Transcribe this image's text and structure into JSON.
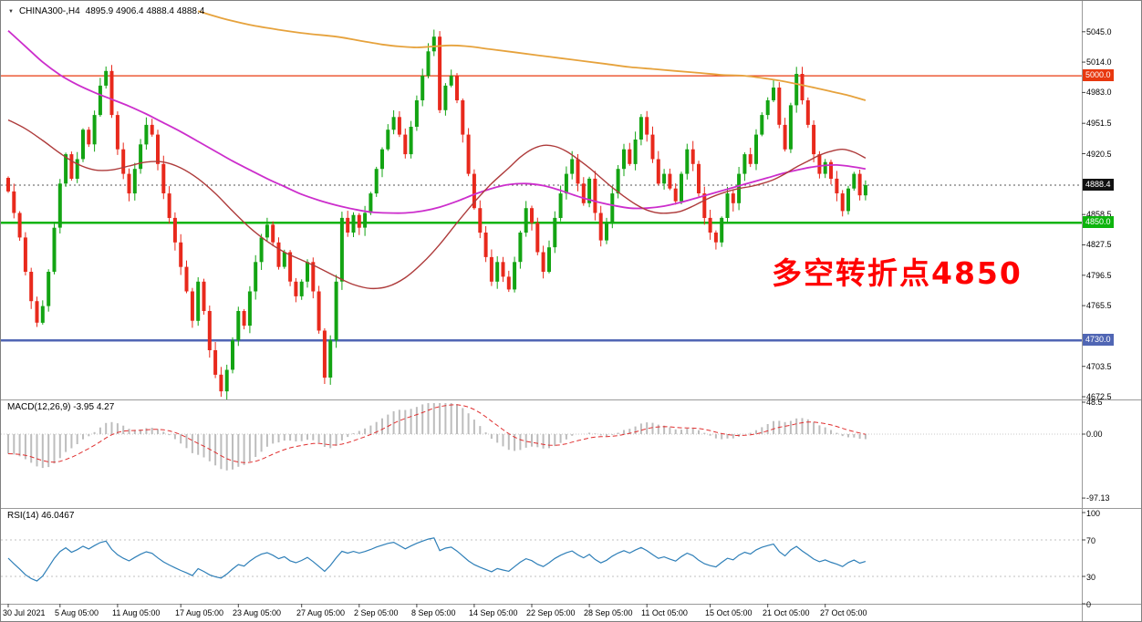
{
  "header": {
    "symbol": "CHINA300-,H4",
    "ohlc": "4895.9 4906.4 4888.4 4888.4"
  },
  "icons": {
    "dropdown": "▼"
  },
  "annotation": {
    "text": "多空转折点4850",
    "color": "#ff0000"
  },
  "colors": {
    "up": "#13a413",
    "down": "#e8291c",
    "background": "#ffffff",
    "panel_border": "#9a9a9a",
    "axis_text": "#000000",
    "current_price_badge": "#111111"
  },
  "chart_data": {
    "type": "candlestick",
    "symbol": "CHINA300-",
    "timeframe": "H4",
    "ohlc": {
      "open": 4895.9,
      "high": 4906.4,
      "low": 4888.4,
      "close": 4888.4
    },
    "y_range": {
      "top_price": 5069,
      "bottom_price": 4672.5
    },
    "price_axis_labels": [
      {
        "text": "5045.0",
        "price": 5045.0
      },
      {
        "text": "5014.0",
        "price": 5014.0
      },
      {
        "text": "4983.0",
        "price": 4983.0
      },
      {
        "text": "4951.5",
        "price": 4951.5
      },
      {
        "text": "4920.5",
        "price": 4920.5
      },
      {
        "text": "4858.5",
        "price": 4858.5
      },
      {
        "text": "4827.5",
        "price": 4827.5
      },
      {
        "text": "4796.5",
        "price": 4796.5
      },
      {
        "text": "4765.5",
        "price": 4765.5
      },
      {
        "text": "4703.5",
        "price": 4703.5
      },
      {
        "text": "4672.5",
        "price": 4672.5
      }
    ],
    "first_open": 4895.9,
    "closes": [
      4882,
      4860,
      4835,
      4800,
      4770,
      4748,
      4765,
      4800,
      4845,
      4890,
      4920,
      4895,
      4915,
      4945,
      4930,
      4960,
      4990,
      5005,
      4960,
      4925,
      4900,
      4880,
      4905,
      4930,
      4950,
      4940,
      4910,
      4880,
      4855,
      4830,
      4805,
      4780,
      4750,
      4790,
      4760,
      4720,
      4695,
      4678,
      4700,
      4730,
      4760,
      4745,
      4780,
      4810,
      4835,
      4848,
      4830,
      4805,
      4820,
      4790,
      4775,
      4790,
      4810,
      4780,
      4740,
      4692,
      4730,
      4790,
      4855,
      4840,
      4858,
      4845,
      4860,
      4880,
      4905,
      4925,
      4945,
      4958,
      4940,
      4920,
      4948,
      4975,
      5000,
      5025,
      5040,
      4965,
      4990,
      5000,
      4975,
      4940,
      4900,
      4865,
      4840,
      4815,
      4790,
      4810,
      4795,
      4782,
      4810,
      4840,
      4865,
      4850,
      4820,
      4800,
      4825,
      4855,
      4880,
      4900,
      4915,
      4890,
      4870,
      4895,
      4860,
      4832,
      4850,
      4880,
      4905,
      4925,
      4910,
      4935,
      4958,
      4940,
      4915,
      4890,
      4900,
      4885,
      4872,
      4900,
      4925,
      4910,
      4880,
      4855,
      4840,
      4830,
      4855,
      4880,
      4870,
      4900,
      4920,
      4910,
      4940,
      4960,
      4975,
      4988,
      4950,
      4925,
      4970,
      5002,
      4975,
      4950,
      4920,
      4900,
      4912,
      4895,
      4880,
      4862,
      4885,
      4900,
      4878,
      4888.4
    ],
    "moving_averages": [
      {
        "name": "ma-slow-orange",
        "color": "#e6a23c",
        "width": 1.8,
        "points": [
          [
            33,
            5066
          ],
          [
            37,
            5059
          ],
          [
            42,
            5052
          ],
          [
            47,
            5047
          ],
          [
            52,
            5043
          ],
          [
            57,
            5040
          ],
          [
            61,
            5036
          ],
          [
            65,
            5032
          ],
          [
            68,
            5030
          ],
          [
            71,
            5029
          ],
          [
            74,
            5030
          ],
          [
            77,
            5031
          ],
          [
            80,
            5030
          ],
          [
            84,
            5027
          ],
          [
            88,
            5024
          ],
          [
            92,
            5021
          ],
          [
            96,
            5018
          ],
          [
            100,
            5015
          ],
          [
            104,
            5012
          ],
          [
            108,
            5009
          ],
          [
            112,
            5007
          ],
          [
            116,
            5005
          ],
          [
            120,
            5003
          ],
          [
            124,
            5001
          ],
          [
            128,
            5000
          ],
          [
            132,
            4997
          ],
          [
            136,
            4993
          ],
          [
            140,
            4988
          ],
          [
            143,
            4984
          ],
          [
            146,
            4980
          ],
          [
            149,
            4975
          ]
        ]
      },
      {
        "name": "ma-medium-magenta",
        "color": "#cc2ecc",
        "width": 1.8,
        "points": [
          [
            0,
            5046
          ],
          [
            3,
            5030
          ],
          [
            6,
            5014
          ],
          [
            9,
            5001
          ],
          [
            12,
            4991
          ],
          [
            15,
            4983
          ],
          [
            18,
            4976
          ],
          [
            21,
            4969
          ],
          [
            24,
            4961
          ],
          [
            27,
            4952
          ],
          [
            30,
            4943
          ],
          [
            33,
            4933
          ],
          [
            36,
            4923
          ],
          [
            39,
            4913
          ],
          [
            42,
            4904
          ],
          [
            45,
            4895
          ],
          [
            48,
            4887
          ],
          [
            51,
            4879
          ],
          [
            54,
            4873
          ],
          [
            57,
            4868
          ],
          [
            60,
            4864
          ],
          [
            63,
            4861
          ],
          [
            66,
            4860
          ],
          [
            69,
            4860
          ],
          [
            72,
            4862
          ],
          [
            75,
            4866
          ],
          [
            78,
            4872
          ],
          [
            81,
            4879
          ],
          [
            84,
            4885
          ],
          [
            87,
            4889
          ],
          [
            90,
            4890
          ],
          [
            93,
            4888
          ],
          [
            96,
            4883
          ],
          [
            99,
            4877
          ],
          [
            102,
            4872
          ],
          [
            105,
            4868
          ],
          [
            108,
            4865
          ],
          [
            111,
            4865
          ],
          [
            114,
            4867
          ],
          [
            117,
            4871
          ],
          [
            120,
            4876
          ],
          [
            123,
            4881
          ],
          [
            126,
            4886
          ],
          [
            129,
            4891
          ],
          [
            132,
            4896
          ],
          [
            135,
            4901
          ],
          [
            138,
            4905
          ],
          [
            141,
            4908
          ],
          [
            144,
            4909
          ],
          [
            147,
            4907
          ],
          [
            149,
            4905
          ]
        ]
      },
      {
        "name": "ma-fast-darkred",
        "color": "#ae3b3b",
        "width": 1.4,
        "points": [
          [
            0,
            4955
          ],
          [
            3,
            4946
          ],
          [
            6,
            4934
          ],
          [
            9,
            4921
          ],
          [
            12,
            4910
          ],
          [
            15,
            4904
          ],
          [
            18,
            4904
          ],
          [
            21,
            4908
          ],
          [
            24,
            4912
          ],
          [
            27,
            4912
          ],
          [
            30,
            4906
          ],
          [
            33,
            4895
          ],
          [
            36,
            4880
          ],
          [
            39,
            4862
          ],
          [
            42,
            4845
          ],
          [
            45,
            4831
          ],
          [
            48,
            4820
          ],
          [
            51,
            4812
          ],
          [
            54,
            4804
          ],
          [
            57,
            4795
          ],
          [
            60,
            4787
          ],
          [
            63,
            4783
          ],
          [
            66,
            4785
          ],
          [
            69,
            4794
          ],
          [
            72,
            4809
          ],
          [
            75,
            4828
          ],
          [
            78,
            4850
          ],
          [
            81,
            4871
          ],
          [
            84,
            4890
          ],
          [
            87,
            4906
          ],
          [
            89,
            4917
          ],
          [
            91,
            4925
          ],
          [
            93,
            4929
          ],
          [
            95,
            4928
          ],
          [
            97,
            4923
          ],
          [
            99,
            4915
          ],
          [
            101,
            4906
          ],
          [
            103,
            4896
          ],
          [
            105,
            4886
          ],
          [
            107,
            4877
          ],
          [
            109,
            4869
          ],
          [
            111,
            4863
          ],
          [
            113,
            4860
          ],
          [
            115,
            4860
          ],
          [
            117,
            4862
          ],
          [
            119,
            4867
          ],
          [
            121,
            4873
          ],
          [
            123,
            4878
          ],
          [
            125,
            4882
          ],
          [
            127,
            4885
          ],
          [
            129,
            4887
          ],
          [
            131,
            4890
          ],
          [
            133,
            4894
          ],
          [
            135,
            4900
          ],
          [
            137,
            4907
          ],
          [
            139,
            4913
          ],
          [
            141,
            4919
          ],
          [
            143,
            4923
          ],
          [
            145,
            4925
          ],
          [
            147,
            4922
          ],
          [
            149,
            4916
          ]
        ]
      }
    ],
    "horizontal_lines": [
      {
        "price": 5000.0,
        "label": "5000.0",
        "color": "#e8380f",
        "width": 1.2,
        "name": "resistance-line-5000"
      },
      {
        "price": 4850.0,
        "label": "4850.0",
        "color": "#0db40d",
        "width": 2.5,
        "name": "support-line-4850"
      },
      {
        "price": 4730.0,
        "label": "4730.0",
        "color": "#5066b4",
        "width": 2.5,
        "name": "support-line-4730"
      }
    ],
    "current_price": {
      "value": 4888.4,
      "label": "4888.4"
    },
    "time_axis": [
      {
        "text": "30 Jul 2021",
        "i": 0
      },
      {
        "text": "5 Aug 05:00",
        "i": 9
      },
      {
        "text": "11 Aug 05:00",
        "i": 19
      },
      {
        "text": "17 Aug 05:00",
        "i": 30
      },
      {
        "text": "23 Aug 05:00",
        "i": 40
      },
      {
        "text": "27 Aug 05:00",
        "i": 51
      },
      {
        "text": "2 Sep 05:00",
        "i": 61
      },
      {
        "text": "8 Sep 05:00",
        "i": 71
      },
      {
        "text": "14 Sep 05:00",
        "i": 81
      },
      {
        "text": "22 Sep 05:00",
        "i": 91
      },
      {
        "text": "28 Sep 05:00",
        "i": 101
      },
      {
        "text": "11 Oct 05:00",
        "i": 111
      },
      {
        "text": "15 Oct 05:00",
        "i": 122
      },
      {
        "text": "21 Oct 05:00",
        "i": 132
      },
      {
        "text": "27 Oct 05:00",
        "i": 142
      }
    ],
    "macd": {
      "label": "MACD(12,26,9) -3.95 4.27",
      "params": [
        12,
        26,
        9
      ],
      "main_value": -3.95,
      "signal_value": 4.27,
      "axis_labels": [
        {
          "text": "48.5",
          "v": 48.5
        },
        {
          "text": "0.00",
          "v": 0
        },
        {
          "text": "-97.13",
          "v": -97.13
        }
      ],
      "seed_offsets": [
        25,
        55
      ],
      "hist_color": "#bdbdbd",
      "signal_color": "#e03030"
    },
    "rsi": {
      "label": "RSI(14) 46.0467",
      "period": 14,
      "value": 46.0467,
      "axis_labels": [
        {
          "text": "100",
          "v": 100
        },
        {
          "text": "70",
          "v": 70
        },
        {
          "text": "30",
          "v": 30
        },
        {
          "text": "0",
          "v": 0
        }
      ],
      "levels": [
        70,
        30
      ],
      "line_color": "#2e7fb8"
    }
  }
}
